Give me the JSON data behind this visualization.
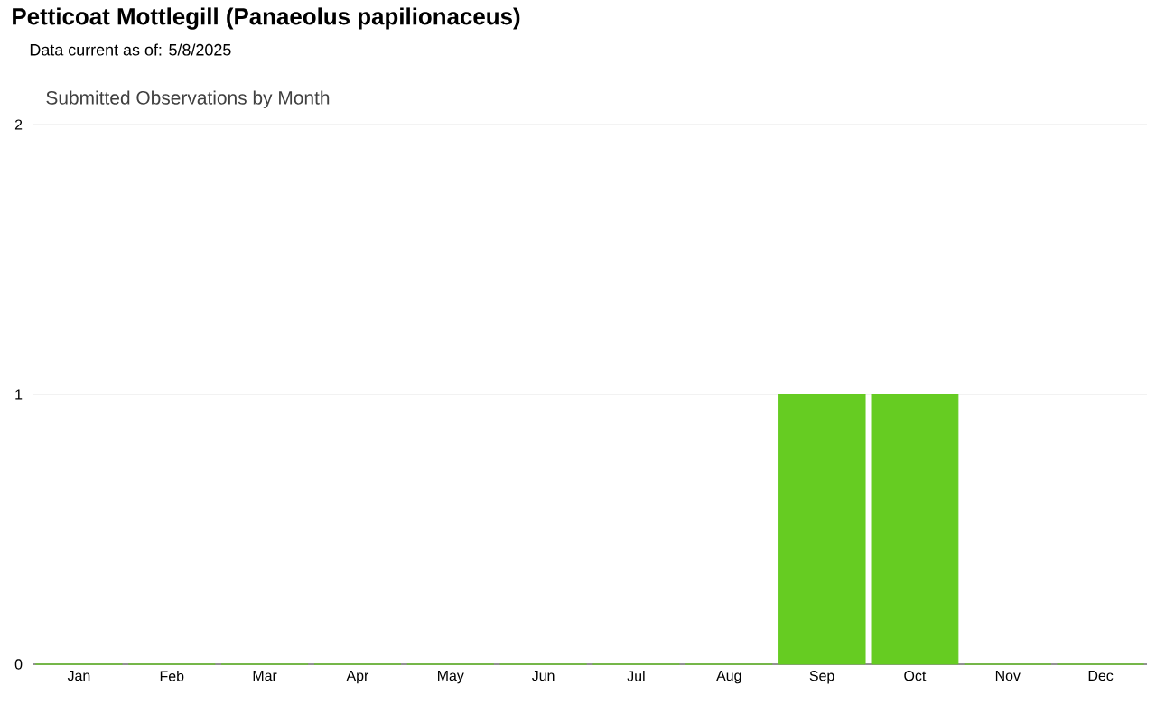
{
  "chart_data": {
    "type": "bar",
    "title": "Petticoat Mottlegill   (Panaeolus papilionaceus)",
    "subtitle": "Data current as of: 5/8/2025",
    "annotations": [
      "Submitted Observations by Month"
    ],
    "categories": [
      "Jan",
      "Feb",
      "Mar",
      "Apr",
      "May",
      "Jun",
      "Jul",
      "Aug",
      "Sep",
      "Oct",
      "Nov",
      "Dec"
    ],
    "values": [
      0,
      0,
      0,
      0,
      0,
      0,
      0,
      0,
      1,
      1,
      0,
      0
    ],
    "color": "#66cc22",
    "ylim": [
      0,
      2
    ],
    "yticks": [
      0,
      1,
      2
    ],
    "grid": "y"
  }
}
